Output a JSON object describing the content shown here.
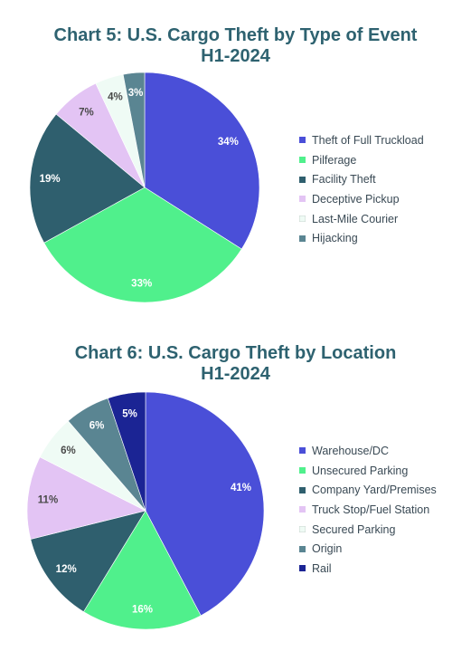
{
  "chart_data": [
    {
      "type": "pie",
      "title_line1": "Chart 5: U.S. Cargo Theft by Type of Event",
      "title_line2": "H1-2024",
      "categories": [
        "Theft of Full Truckload",
        "Pilferage",
        "Facility Theft",
        "Deceptive Pickup",
        "Last-Mile Courier",
        "Hijacking"
      ],
      "values": [
        34,
        33,
        19,
        7,
        4,
        3
      ],
      "labels": [
        "34%",
        "33%",
        "19%",
        "7%",
        "4%",
        "3%"
      ],
      "colors": [
        "#4a4fd8",
        "#50f08c",
        "#2f5f6e",
        "#e3c4f4",
        "#effbf5",
        "#5a8592"
      ],
      "label_colors": [
        "#ffffff",
        "#ffffff",
        "#ffffff",
        "#4a4a4a",
        "#4a4a4a",
        "#ffffff"
      ],
      "legend_position": "right"
    },
    {
      "type": "pie",
      "title_line1": "Chart 6: U.S. Cargo Theft by Location",
      "title_line2": "H1-2024",
      "categories": [
        "Warehouse/DC",
        "Unsecured Parking",
        "Company Yard/Premises",
        "Truck Stop/Fuel Station",
        "Secured Parking",
        "Origin",
        "Rail"
      ],
      "values": [
        41,
        16,
        12,
        11,
        6,
        6,
        5
      ],
      "labels": [
        "41%",
        "16%",
        "12%",
        "11%",
        "6%",
        "6%",
        "5%"
      ],
      "colors": [
        "#4a4fd8",
        "#50f08c",
        "#2f5f6e",
        "#e3c4f4",
        "#effbf5",
        "#5a8592",
        "#1b2494"
      ],
      "label_colors": [
        "#ffffff",
        "#ffffff",
        "#ffffff",
        "#4a4a4a",
        "#4a4a4a",
        "#ffffff",
        "#ffffff"
      ],
      "legend_position": "right"
    }
  ]
}
